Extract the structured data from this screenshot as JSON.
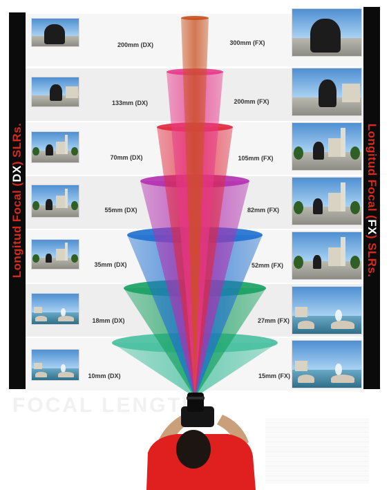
{
  "title_dx": "Longitud Focal (DX) SLRs.",
  "title_dx_parts": [
    "Longitud Focal (",
    "DX",
    ") SLRs."
  ],
  "title_fx": "Longitud Focal (FX) SLRs.",
  "title_fx_parts": [
    "Longitud Focal (",
    "FX",
    ") SLRs."
  ],
  "focal_lengths": [
    {
      "dx": "200mm (DX)",
      "fx": "300mm (FX)"
    },
    {
      "dx": "133mm (DX)",
      "fx": "200mm (FX)"
    },
    {
      "dx": "70mm (DX)",
      "fx": "105mm (FX)"
    },
    {
      "dx": "55mm (DX)",
      "fx": "82mm (FX)"
    },
    {
      "dx": "35mm (DX)",
      "fx": "52mm (FX)"
    },
    {
      "dx": "18mm (DX)",
      "fx": "27mm (FX)"
    },
    {
      "dx": "10mm (DX)",
      "fx": "15mm (FX)"
    }
  ],
  "colors": {
    "title_red": "#d8291d",
    "bar_black": "#0b0b0b",
    "cone_colors": [
      "#c8501e",
      "#e8388a",
      "#e0283d",
      "#b22fb0",
      "#1e6fd0",
      "#17a060",
      "#48c0a0"
    ],
    "shirt_red": "#e01f1f"
  }
}
